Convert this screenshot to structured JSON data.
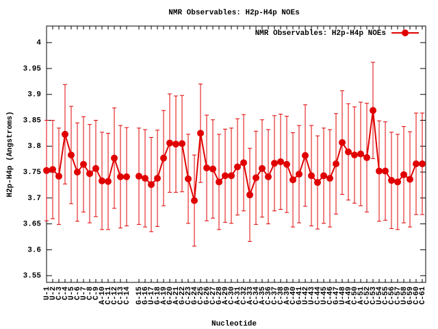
{
  "chart_data": {
    "type": "line",
    "title": "NMR Observables: H2p-H4p NOEs",
    "xlabel": "Nucleotide",
    "ylabel": "H2p-H4p (Angstroms)",
    "categories": [
      "U-1",
      "U-2",
      "C-3",
      "C-4",
      "U-5",
      "C-6",
      "U-7",
      "C-8",
      "C-9",
      "A-10",
      "C-11",
      "C-12",
      "C-13",
      "C-14",
      null,
      "G-15",
      "G-16",
      "U-17",
      "G-18",
      "A-19",
      "G-20",
      "A-21",
      "G-22",
      "C-23",
      "G-24",
      "C-25",
      "G-26",
      "C-27",
      "G-28",
      "A-29",
      "C-30",
      "A-31",
      "C-32",
      "A-33",
      "C-34",
      "A-35",
      "C-36",
      "C-37",
      "C-38",
      "A-39",
      "C-40",
      "G-41",
      "U-42",
      "U-43",
      "C-44",
      "U-45",
      "C-46",
      "G-47",
      "U-48",
      "A-49",
      "C-50",
      "A-51",
      "C-52",
      "C-53",
      "U-54",
      "C-55",
      "C-56",
      "C-57",
      "U-58",
      "G-59",
      "C-60",
      "C-61"
    ],
    "series": [
      {
        "name": "NMR Observables: H2p-H4p NOEs",
        "color": "#e00000",
        "values": [
          3.753,
          3.755,
          3.742,
          3.823,
          3.783,
          3.75,
          3.765,
          3.747,
          3.757,
          3.733,
          3.732,
          3.777,
          3.741,
          3.741,
          null,
          3.742,
          3.738,
          3.726,
          3.738,
          3.777,
          3.806,
          3.804,
          3.805,
          3.737,
          3.695,
          3.825,
          3.758,
          3.756,
          3.731,
          3.743,
          3.743,
          3.76,
          3.768,
          3.706,
          3.739,
          3.757,
          3.741,
          3.767,
          3.77,
          3.765,
          3.735,
          3.746,
          3.782,
          3.743,
          3.73,
          3.743,
          3.738,
          3.766,
          3.807,
          3.789,
          3.783,
          3.785,
          3.778,
          3.869,
          3.752,
          3.752,
          3.734,
          3.731,
          3.745,
          3.736,
          3.766,
          3.766
        ],
        "errors": [
          0.097,
          0.095,
          0.093,
          0.096,
          0.094,
          0.095,
          0.092,
          0.095,
          0.093,
          0.094,
          0.093,
          0.097,
          0.099,
          0.095,
          null,
          0.093,
          0.094,
          0.091,
          0.093,
          0.092,
          0.095,
          0.093,
          0.093,
          0.086,
          0.088,
          0.095,
          0.102,
          0.095,
          0.092,
          0.09,
          0.092,
          0.093,
          0.093,
          0.09,
          0.09,
          0.094,
          0.091,
          0.092,
          0.092,
          0.093,
          0.091,
          0.094,
          0.098,
          0.097,
          0.09,
          0.092,
          0.094,
          0.097,
          0.1,
          0.093,
          0.093,
          0.1,
          0.105,
          0.093,
          0.097,
          0.095,
          0.093,
          0.092,
          0.093,
          0.092,
          0.098,
          0.098
        ]
      }
    ],
    "ylim": [
      3.537,
      4.032
    ],
    "yticks": [
      3.55,
      3.6,
      3.65,
      3.7,
      3.75,
      3.8,
      3.85,
      3.9,
      3.95,
      4
    ],
    "legend": "upper right"
  }
}
